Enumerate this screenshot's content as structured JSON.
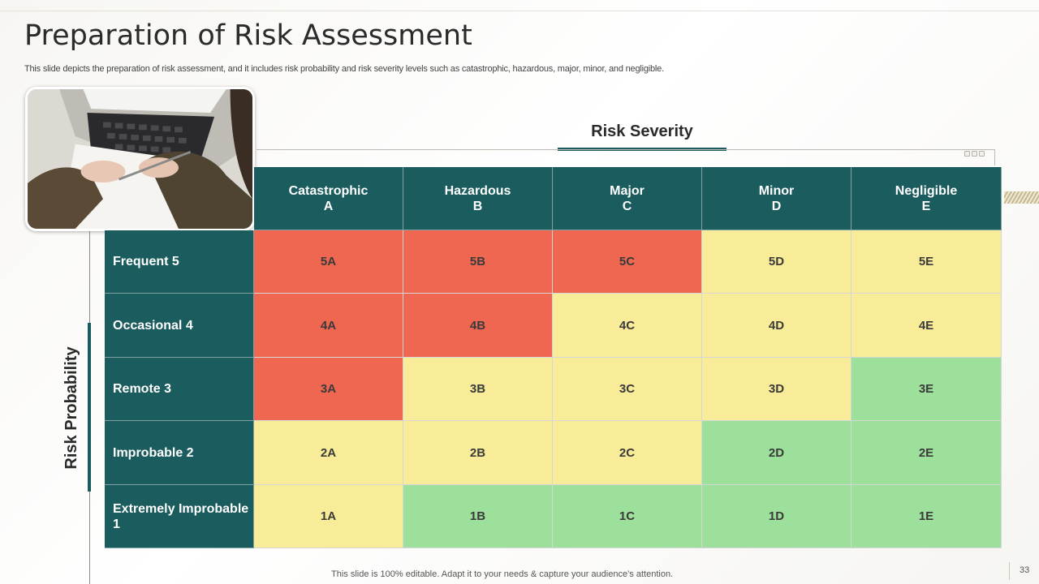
{
  "slide": {
    "title": "Preparation of Risk Assessment",
    "subtitle": "This slide depicts the preparation of risk assessment, and it includes risk probability and risk severity levels such as catastrophic, hazardous, major, minor, and negligible.",
    "footer": "This slide is 100% editable. Adapt it to your needs & capture your audience’s attention.",
    "page_number": "33"
  },
  "axes": {
    "severity_label": "Risk Severity",
    "probability_label": "Risk Probability"
  },
  "columns": [
    {
      "name": "Catastrophic",
      "code": "A"
    },
    {
      "name": "Hazardous",
      "code": "B"
    },
    {
      "name": "Major",
      "code": "C"
    },
    {
      "name": "Minor",
      "code": "D"
    },
    {
      "name": "Negligible",
      "code": "E"
    }
  ],
  "rows": [
    {
      "label": "Frequent 5",
      "cells": [
        "5A",
        "5B",
        "5C",
        "5D",
        "5E"
      ],
      "levels": [
        "red",
        "red",
        "red",
        "yellow",
        "yellow"
      ]
    },
    {
      "label": "Occasional 4",
      "cells": [
        "4A",
        "4B",
        "4C",
        "4D",
        "4E"
      ],
      "levels": [
        "red",
        "red",
        "yellow",
        "yellow",
        "yellow"
      ]
    },
    {
      "label": "Remote 3",
      "cells": [
        "3A",
        "3B",
        "3C",
        "3D",
        "3E"
      ],
      "levels": [
        "red",
        "yellow",
        "yellow",
        "yellow",
        "green"
      ]
    },
    {
      "label": "Improbable 2",
      "cells": [
        "2A",
        "2B",
        "2C",
        "2D",
        "2E"
      ],
      "levels": [
        "yellow",
        "yellow",
        "yellow",
        "green",
        "green"
      ]
    },
    {
      "label": "Extremely Improbable 1",
      "cells": [
        "1A",
        "1B",
        "1C",
        "1D",
        "1E"
      ],
      "levels": [
        "yellow",
        "green",
        "green",
        "green",
        "green"
      ]
    }
  ],
  "colors": {
    "teal": "#1b5c5e",
    "red": "#ef6751",
    "yellow": "#f8ec98",
    "green": "#9de09b"
  }
}
